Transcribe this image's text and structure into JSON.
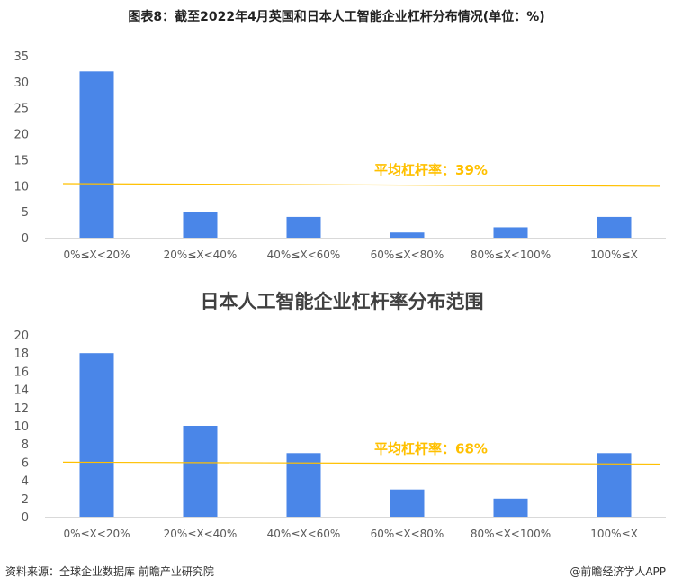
{
  "header": {
    "title": "图表8：截至2022年4月英国和日本人工智能企业杠杆分布情况(单位：%)"
  },
  "footer": {
    "source": "资料来源：全球企业数据库 前瞻产业研究院",
    "brand": "@前瞻经济学人APP"
  },
  "colors": {
    "bar": "#4a86e8",
    "avg_line": "#ffc000"
  },
  "chart_data": [
    {
      "type": "bar",
      "title": "",
      "categories": [
        "0%≤X<20%",
        "20%≤X<40%",
        "40%≤X<60%",
        "60%≤X<80%",
        "80%≤X<100%",
        "100%≤X"
      ],
      "values": [
        32,
        5,
        4,
        1,
        2,
        4
      ],
      "ylim": [
        0,
        35
      ],
      "yticks": [
        0,
        5,
        10,
        15,
        20,
        25,
        30,
        35
      ],
      "avg_line": {
        "label": "平均杠杆率：39%",
        "y_start": 10.4,
        "y_end": 9.9
      }
    },
    {
      "type": "bar",
      "title": "日本人工智能企业杠杆率分布范围",
      "categories": [
        "0%≤X<20%",
        "20%≤X<40%",
        "40%≤X<60%",
        "60%≤X<80%",
        "80%≤X<100%",
        "100%≤X"
      ],
      "values": [
        18,
        10,
        7,
        3,
        2,
        7
      ],
      "ylim": [
        0,
        20
      ],
      "yticks": [
        0,
        2,
        4,
        6,
        8,
        10,
        12,
        14,
        16,
        18,
        20
      ],
      "avg_line": {
        "label": "平均杠杆率：68%",
        "y_start": 6.0,
        "y_end": 5.8
      }
    }
  ]
}
